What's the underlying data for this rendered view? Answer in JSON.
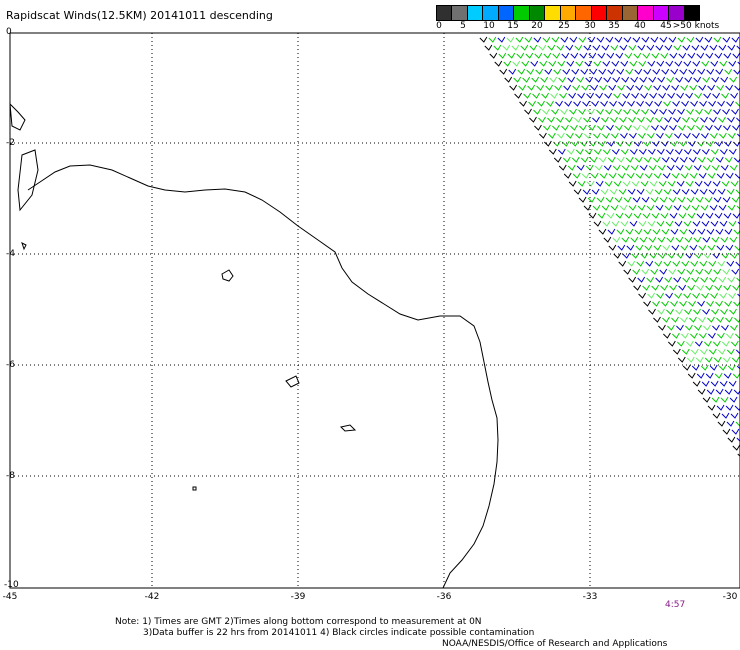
{
  "title": "Rapidscat Winds(12.5KM) 20141011 descending",
  "legend": {
    "colors": [
      "#303030",
      "#707070",
      "#00ccff",
      "#00aaff",
      "#0066ff",
      "#00cc00",
      "#008800",
      "#ffdd00",
      "#ffaa00",
      "#ff6600",
      "#ff0000",
      "#cc3300",
      "#996633",
      "#ff00cc",
      "#cc00ff",
      "#9900cc",
      "#000000"
    ],
    "ticks": [
      "0",
      "5",
      "10",
      "15",
      "20",
      "25",
      "30",
      "35",
      "40",
      "45",
      ">50 knots"
    ]
  },
  "axes": {
    "lat_labels": [
      "0",
      "-2",
      "-4",
      "-6",
      "-8",
      "-10"
    ],
    "lon_labels": [
      "-45",
      "-42",
      "-39",
      "-36",
      "-33",
      "-30"
    ]
  },
  "time_label": "4:57",
  "notes": {
    "line1": "Note: 1) Times are GMT 2)Times along bottom correspond to measurement at 0N",
    "line2": "3)Data buffer is 22 hrs from 20141011 4) Black circles indicate possible contamination",
    "line3": "NOAA/NESDIS/Office of Research and Applications"
  },
  "wind_colors": {
    "low": "#00cc00",
    "mid": "#0000cc",
    "light": "#66ee66"
  }
}
